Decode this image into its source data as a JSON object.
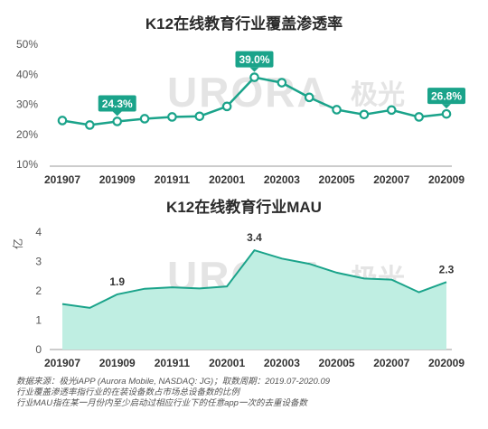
{
  "chart_data": [
    {
      "type": "line",
      "title": "K12在线教育行业覆盖渗透率",
      "x": [
        "201907",
        "201908",
        "201909",
        "201910",
        "201911",
        "201912",
        "202001",
        "202002",
        "202003",
        "202004",
        "202005",
        "202006",
        "202007",
        "202008",
        "202009"
      ],
      "x_tick_labels": [
        "201907",
        "201909",
        "201911",
        "202001",
        "202003",
        "202005",
        "202007",
        "202009"
      ],
      "series": [
        {
          "values": [
            24.6,
            23.1,
            24.3,
            25.2,
            25.8,
            26.0,
            29.3,
            39.0,
            37.2,
            32.3,
            28.2,
            26.6,
            28.1,
            25.8,
            26.8
          ]
        }
      ],
      "data_labels": [
        {
          "x": "201909",
          "text": "24.3%"
        },
        {
          "x": "202002",
          "text": "39.0%"
        },
        {
          "x": "202009",
          "text": "26.8%"
        }
      ],
      "y_ticks": [
        "10%",
        "20%",
        "30%",
        "40%",
        "50%"
      ],
      "ylim": [
        10,
        50
      ],
      "grid": false,
      "color": "#1aa38a"
    },
    {
      "type": "area",
      "title": "K12在线教育行业MAU",
      "ylabel": "亿",
      "x": [
        "201907",
        "201908",
        "201909",
        "201910",
        "201911",
        "201912",
        "202001",
        "202002",
        "202003",
        "202004",
        "202005",
        "202006",
        "202007",
        "202008",
        "202009"
      ],
      "x_tick_labels": [
        "201907",
        "201909",
        "201911",
        "202001",
        "202003",
        "202005",
        "202007",
        "202009"
      ],
      "series": [
        {
          "values": [
            1.55,
            1.42,
            1.88,
            2.07,
            2.12,
            2.08,
            2.15,
            3.38,
            3.1,
            2.92,
            2.62,
            2.42,
            2.38,
            1.95,
            2.3
          ]
        }
      ],
      "data_labels": [
        {
          "x": "201909",
          "text": "1.9"
        },
        {
          "x": "202002",
          "text": "3.4"
        },
        {
          "x": "202009",
          "text": "2.3"
        }
      ],
      "y_ticks": [
        "0",
        "1",
        "2",
        "3",
        "4"
      ],
      "ylim": [
        0,
        4
      ],
      "grid": false,
      "color": "#1aa38a",
      "fill": "#bfeee2"
    }
  ],
  "watermark": {
    "logo_text": "URORA",
    "cn_text": "极光"
  },
  "notes": [
    "数据来源：极光iAPP (Aurora Mobile, NASDAQ: JG)；取数周期：2019.07-2020.09",
    "行业覆盖渗透率指行业的在装设备数占市场总设备数的比例",
    "行业MAU指在某一月份内至少启动过相应行业下的任意app一次的去重设备数"
  ]
}
